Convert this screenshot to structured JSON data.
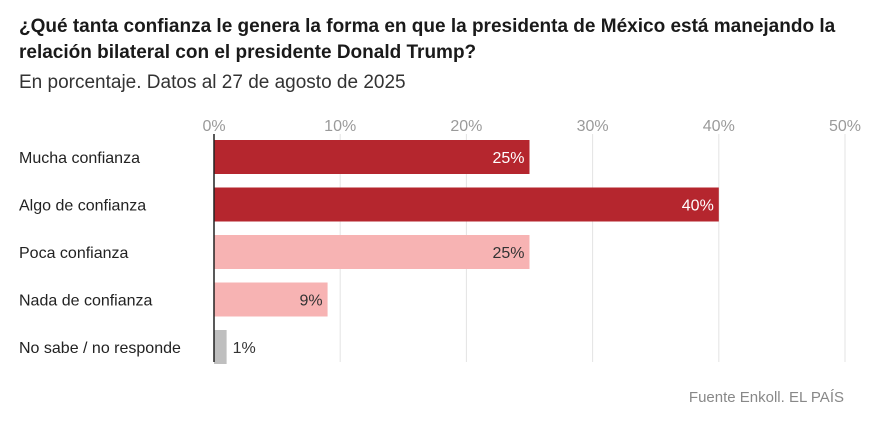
{
  "title": "¿Qué tanta confianza le genera la forma en que la presidenta de México está manejando la relación bilateral con el presidente Donald Trump?",
  "subtitle": "En porcentaje. Datos al 27 de agosto de 2025",
  "source": "Fuente Enkoll. EL PAÍS",
  "chart_data": {
    "type": "bar",
    "orientation": "horizontal",
    "categories": [
      "Mucha confianza",
      "Algo de confianza",
      "Poca confianza",
      "Nada de confianza",
      "No sabe / no responde"
    ],
    "values": [
      25,
      40,
      25,
      9,
      1
    ],
    "value_labels": [
      "25%",
      "40%",
      "25%",
      "9%",
      "1%"
    ],
    "colors": [
      "#b5262e",
      "#b5262e",
      "#f7b3b3",
      "#f7b3b3",
      "#bfbfbf"
    ],
    "label_colors": [
      "#ffffff",
      "#ffffff",
      "#333333",
      "#333333",
      "#333333"
    ],
    "xlim": [
      0,
      50
    ],
    "xticks": [
      0,
      10,
      20,
      30,
      40,
      50
    ],
    "xtick_labels": [
      "0%",
      "10%",
      "20%",
      "30%",
      "40%",
      "50%"
    ],
    "grid": true
  }
}
